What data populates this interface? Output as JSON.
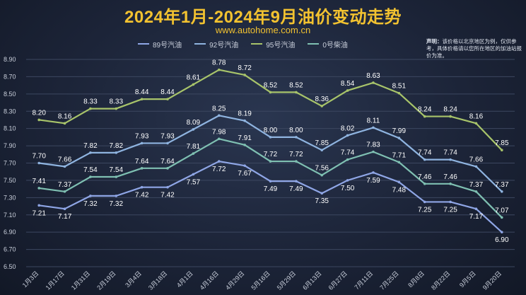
{
  "title": "2024年1月-2024年9月油价变动走势",
  "subtitle": "www.autohome.com.cn",
  "note": {
    "label": "声明：",
    "text": "该价格以北京地区为例，仅供参考，具体价格请以您所在地区的加油站报价为准。"
  },
  "chart_data": {
    "type": "line",
    "title": "2024年1月-2024年9月油价变动走势",
    "xlabel": "",
    "ylabel": "",
    "ylim": [
      6.5,
      8.9
    ],
    "yticks": [
      "6.50",
      "6.70",
      "6.90",
      "7.10",
      "7.30",
      "7.50",
      "7.70",
      "7.90",
      "8.10",
      "8.30",
      "8.50",
      "8.70",
      "8.90"
    ],
    "grid": true,
    "legend_position": "top",
    "x": [
      "1月3日",
      "1月17日",
      "1月31日",
      "2月19日",
      "3月4日",
      "3月18日",
      "4月1日",
      "4月16日",
      "4月29日",
      "5月16日",
      "5月29日",
      "6月13日",
      "6月27日",
      "7月11日",
      "7月25日",
      "8月8日",
      "8月22日",
      "9月5日",
      "9月20日"
    ],
    "series": [
      {
        "name": "89号汽油",
        "color": "#8fa6e6",
        "values": [
          7.21,
          7.17,
          7.32,
          7.32,
          7.42,
          7.42,
          7.57,
          7.72,
          7.67,
          7.49,
          7.49,
          7.35,
          7.5,
          7.59,
          7.48,
          7.25,
          7.25,
          7.17,
          6.9
        ]
      },
      {
        "name": "92号汽油",
        "color": "#8fb4e0",
        "values": [
          7.7,
          7.66,
          7.82,
          7.82,
          7.93,
          7.93,
          8.09,
          8.25,
          8.19,
          8.0,
          8.0,
          7.85,
          8.02,
          8.11,
          7.99,
          7.74,
          7.74,
          7.66,
          7.37
        ]
      },
      {
        "name": "95号汽油",
        "color": "#a8c46a",
        "values": [
          8.2,
          8.16,
          8.33,
          8.33,
          8.44,
          8.44,
          8.61,
          8.78,
          8.72,
          8.52,
          8.52,
          8.36,
          8.54,
          8.63,
          8.51,
          8.24,
          8.24,
          8.16,
          7.85
        ]
      },
      {
        "name": "0号柴油",
        "color": "#7fc0b2",
        "values": [
          7.41,
          7.37,
          7.54,
          7.54,
          7.64,
          7.64,
          7.81,
          7.98,
          7.91,
          7.72,
          7.72,
          7.56,
          7.74,
          7.83,
          7.71,
          7.46,
          7.46,
          7.37,
          7.07
        ]
      }
    ]
  }
}
